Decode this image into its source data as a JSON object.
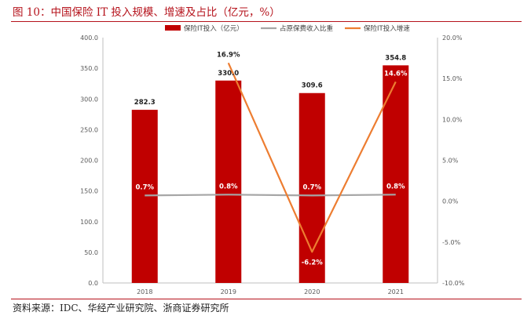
{
  "figure": {
    "title": "图 10：中国保险 IT 投入规模、增速及占比（亿元，%）",
    "source": "资料来源：IDC、华经产业研究院、浙商证券研究所"
  },
  "chart_data": {
    "type": "bar",
    "categories": [
      "2018",
      "2019",
      "2020",
      "2021"
    ],
    "series": [
      {
        "name": "保险IT投入（亿元）",
        "type": "bar",
        "axis": "left",
        "color": "#c00000",
        "values": [
          282.3,
          330.0,
          309.6,
          354.8
        ],
        "labels": [
          "282.3",
          "330.0",
          "309.6",
          "354.8"
        ]
      },
      {
        "name": "占原保费收入比重",
        "type": "line",
        "axis": "right",
        "color": "#a6a6a6",
        "values": [
          0.7,
          0.8,
          0.7,
          0.8
        ],
        "labels": [
          "0.7%",
          "0.8%",
          "0.7%",
          "0.8%"
        ]
      },
      {
        "name": "保险IT投入增速",
        "type": "line",
        "axis": "right",
        "color": "#ed7d31",
        "values": [
          null,
          16.9,
          -6.2,
          14.6
        ],
        "labels": [
          "",
          "16.9%",
          "-6.2%",
          "14.6%"
        ]
      }
    ],
    "y_left": {
      "min": 0,
      "max": 400,
      "step": 50,
      "tick_labels": [
        "0.0",
        "50.0",
        "100.0",
        "150.0",
        "200.0",
        "250.0",
        "300.0",
        "350.0",
        "400.0"
      ]
    },
    "y_right": {
      "min": -10,
      "max": 20,
      "step": 5,
      "tick_labels": [
        "-10.0%",
        "-5.0%",
        "0.0%",
        "5.0%",
        "10.0%",
        "15.0%",
        "20.0%"
      ]
    },
    "grid": false,
    "legend_position": "top"
  }
}
